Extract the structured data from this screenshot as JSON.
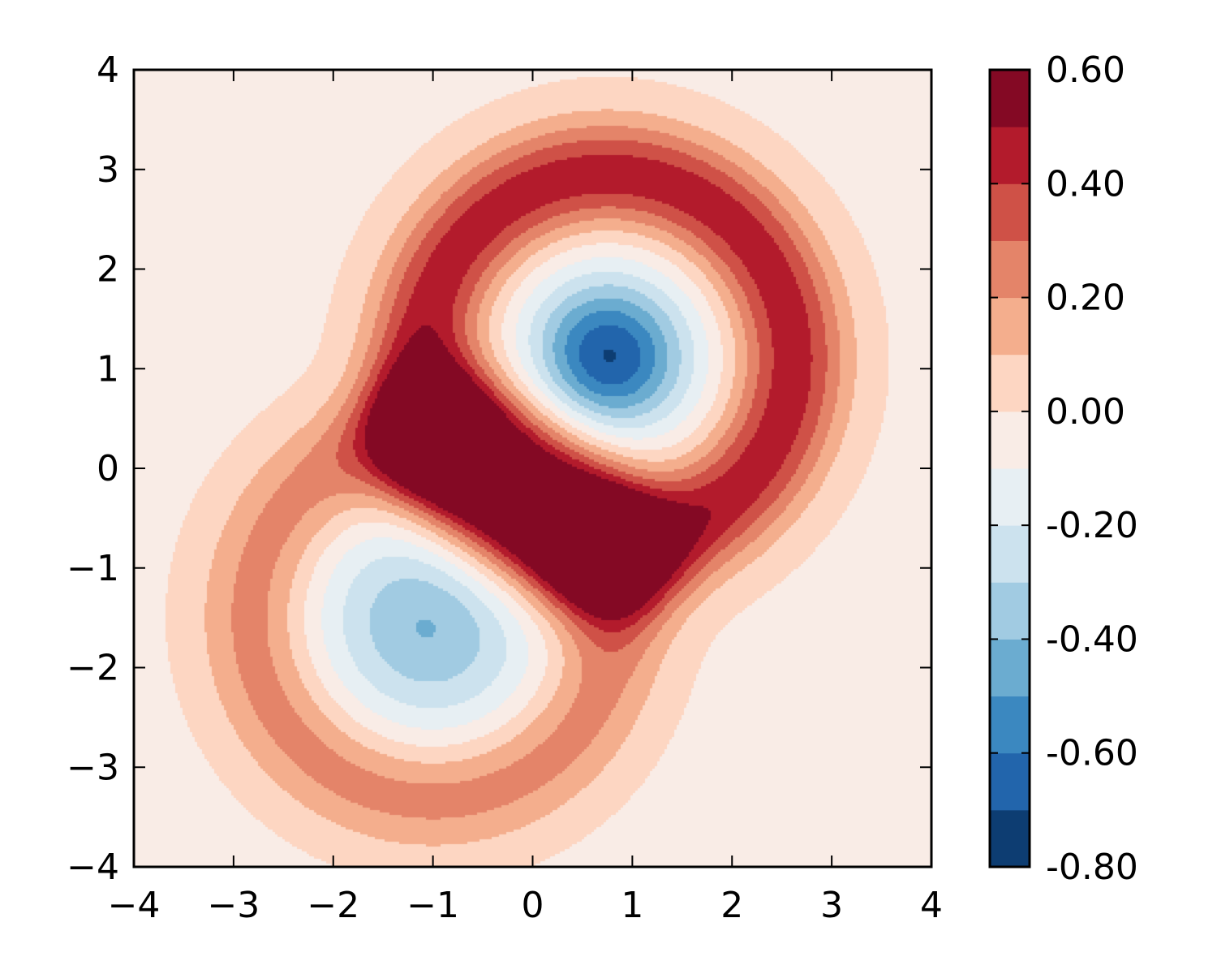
{
  "chart_data": {
    "type": "heatmap",
    "subtype": "filled-contour",
    "title": "",
    "xlabel": "",
    "ylabel": "",
    "xlim": [
      -4,
      4
    ],
    "ylim": [
      -4,
      4
    ],
    "x_ticks": [
      -4,
      -3,
      -2,
      -1,
      0,
      1,
      2,
      3,
      4
    ],
    "y_ticks": [
      -4,
      -3,
      -2,
      -1,
      0,
      1,
      2,
      3,
      4
    ],
    "x_tick_labels": [
      "−4",
      "−3",
      "−2",
      "−1",
      "0",
      "1",
      "2",
      "3",
      "4"
    ],
    "y_tick_labels": [
      "−4",
      "−3",
      "−2",
      "−1",
      "0",
      "1",
      "2",
      "3",
      "4"
    ],
    "grid": false,
    "colorbar": {
      "position": "right",
      "levels": [
        -0.8,
        -0.7,
        -0.6,
        -0.5,
        -0.4,
        -0.3,
        -0.2,
        -0.1,
        0.0,
        0.1,
        0.2,
        0.3,
        0.4,
        0.5,
        0.6
      ],
      "colors": [
        "#0d3d72",
        "#2265ac",
        "#3b88c0",
        "#6bacd0",
        "#a1cbe2",
        "#cce2ee",
        "#e7eff3",
        "#f9ece6",
        "#fdd6c2",
        "#f4ae8d",
        "#e48469",
        "#cf5147",
        "#b31b2c",
        "#840924"
      ],
      "tick_values": [
        0.6,
        0.4,
        0.2,
        0.0,
        -0.2,
        -0.4,
        -0.6,
        -0.8
      ],
      "tick_labels": [
        "0.60",
        "0.40",
        "0.20",
        "0.00",
        "-0.20",
        "-0.40",
        "-0.60",
        "-0.80"
      ]
    },
    "field": {
      "description_terms": [
        {
          "kind": "ring",
          "center": [
            0.75,
            1.1
          ],
          "radius": 1.85,
          "width": 0.55,
          "amplitude": 0.48
        },
        {
          "kind": "bump",
          "center": [
            0.75,
            1.1
          ],
          "sigma": 0.55,
          "amplitude": -0.72
        },
        {
          "kind": "ring",
          "center": [
            -1.0,
            -1.5
          ],
          "radius": 1.8,
          "width": 0.55,
          "amplitude": 0.27
        },
        {
          "kind": "bump",
          "center": [
            -1.0,
            -1.5
          ],
          "sigma": 0.75,
          "amplitude": -0.42
        },
        {
          "kind": "bump",
          "center": [
            -1.0,
            0.35
          ],
          "sigma": 0.45,
          "amplitude": 0.52
        },
        {
          "kind": "bump",
          "center": [
            0.75,
            -0.85
          ],
          "sigma": 0.45,
          "amplitude": 0.52
        },
        {
          "kind": "bump",
          "center": [
            -0.1,
            -0.25
          ],
          "sigma": 0.75,
          "amplitude": 0.35
        }
      ],
      "background": -0.02
    }
  }
}
